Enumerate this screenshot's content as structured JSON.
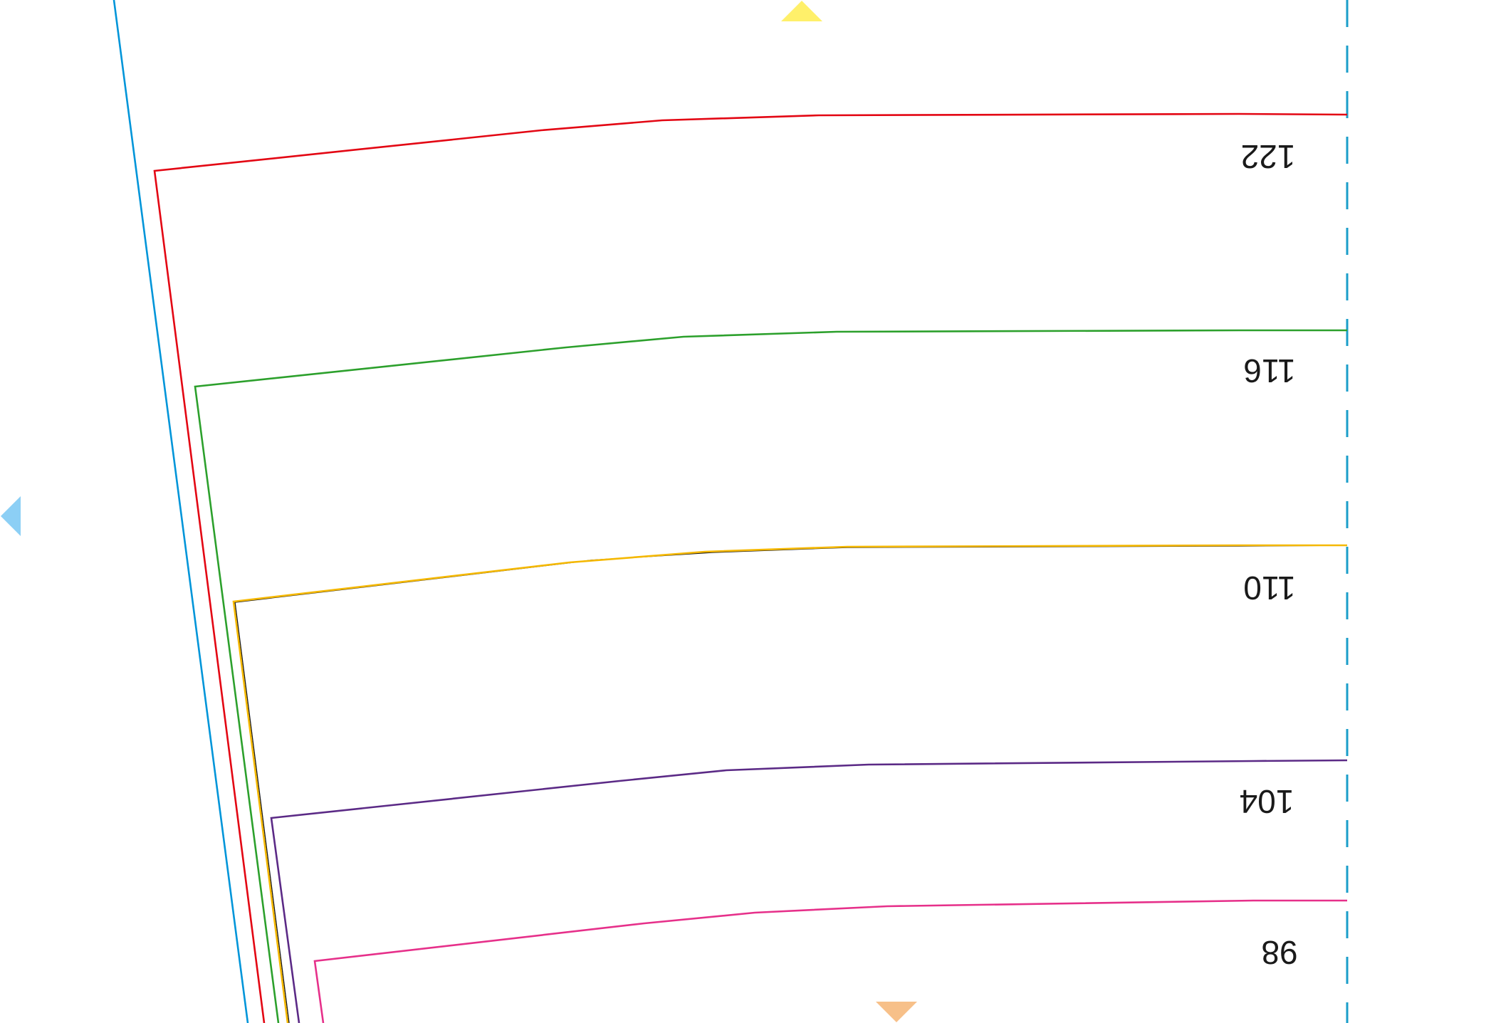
{
  "pattern": {
    "sizes": [
      {
        "label": "122",
        "color": "#e30613"
      },
      {
        "label": "116",
        "color": "#2ca02c"
      },
      {
        "label": "110",
        "color": "#f5b800"
      },
      {
        "label": "104",
        "color": "#5b2a86"
      },
      {
        "label": "98",
        "color": "#e6308a"
      }
    ],
    "grainline_color": "#0095d9",
    "fold_line_color": "#1a9ec9",
    "notch_colors": {
      "top": "#fff06a",
      "left": "#8ccff5",
      "bottom": "#f7c089"
    }
  }
}
